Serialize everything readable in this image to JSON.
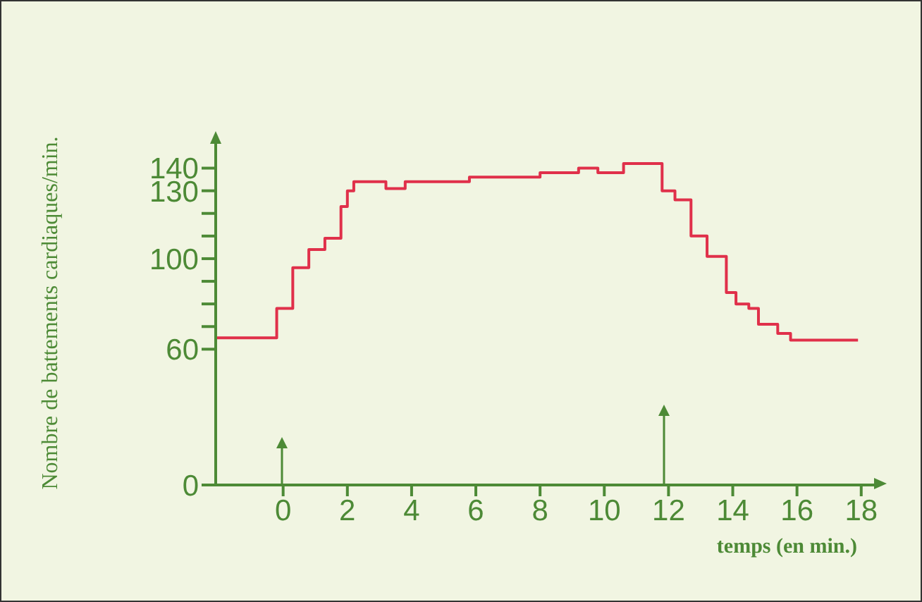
{
  "chart_data": {
    "type": "step",
    "xlabel": "temps (en min.)",
    "ylabel": "Nombre de battements cardiaques/min.",
    "x": [
      -2.1,
      -0.2,
      0.3,
      0.8,
      1.3,
      1.8,
      2.0,
      2.2,
      3.2,
      3.8,
      5.8,
      8.0,
      9.2,
      9.8,
      10.6,
      11.8,
      12.2,
      12.7,
      13.2,
      13.8,
      14.1,
      14.5,
      14.8,
      15.4,
      15.8,
      17.9
    ],
    "series": [
      {
        "color": "#e0304a",
        "values": [
          65,
          78,
          96,
          104,
          109,
          123,
          130,
          134,
          131,
          134,
          136,
          138,
          140,
          138,
          142,
          130,
          126,
          110,
          101,
          85,
          80,
          78,
          71,
          67,
          64,
          64
        ]
      }
    ],
    "xlim": [
      -2.1,
      18.4
    ],
    "ylim": [
      0,
      152
    ],
    "xticks": [
      0,
      2,
      4,
      6,
      8,
      10,
      12,
      14,
      16,
      18
    ],
    "yticks": [
      0,
      60,
      {
        "value": 70,
        "label": null
      },
      {
        "value": 80,
        "label": null
      },
      {
        "value": 90,
        "label": null
      },
      100,
      {
        "value": 110,
        "label": null
      },
      {
        "value": 120,
        "label": null
      },
      130,
      140
    ],
    "grid": false,
    "legend": false,
    "marker": "none",
    "line_style": "solid"
  }
}
